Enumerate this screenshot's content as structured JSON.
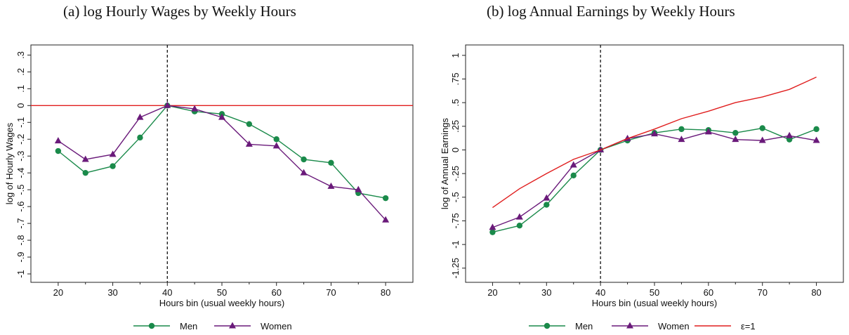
{
  "colors": {
    "men": "#1a8a4a",
    "women": "#6a1a7a",
    "elasticity": "#e01e1e",
    "reference_line": "#e01e1e"
  },
  "chart_data": [
    {
      "type": "line",
      "title": "(a) log Hourly Wages by Weekly Hours",
      "xlabel": "Hours bin (usual weekly hours)",
      "ylabel": "log of Hourly Wages",
      "xlim": [
        15,
        85
      ],
      "ylim": [
        -1.05,
        0.36
      ],
      "xticks": [
        20,
        30,
        40,
        50,
        60,
        70,
        80
      ],
      "xtick_labels": [
        "20",
        "30",
        "40",
        "50",
        "60",
        "70",
        "80"
      ],
      "xminor": [
        25,
        35,
        45,
        55,
        65,
        75
      ],
      "yticks": [
        -1,
        -0.9,
        -0.8,
        -0.7,
        -0.6,
        -0.5,
        -0.4,
        -0.3,
        -0.2,
        -0.1,
        0,
        0.1,
        0.2,
        0.3
      ],
      "ytick_labels": [
        "-1",
        "-.9",
        "-.8",
        "-.7",
        "-.6",
        "-.5",
        "-.4",
        "-.3",
        "-.2",
        "-.1",
        "0",
        ".1",
        ".2",
        ".3"
      ],
      "vline": 40,
      "hline": 0,
      "x": [
        20,
        25,
        30,
        35,
        40,
        45,
        50,
        55,
        60,
        65,
        70,
        75,
        80
      ],
      "series": [
        {
          "name": "Men",
          "marker": "circle",
          "values": [
            -0.27,
            -0.4,
            -0.36,
            -0.19,
            0,
            -0.035,
            -0.05,
            -0.11,
            -0.2,
            -0.32,
            -0.34,
            -0.52,
            -0.55
          ]
        },
        {
          "name": "Women",
          "marker": "triangle",
          "values": [
            -0.21,
            -0.32,
            -0.29,
            -0.07,
            0,
            -0.02,
            -0.07,
            -0.23,
            -0.24,
            -0.4,
            -0.48,
            -0.5,
            -0.68
          ]
        }
      ],
      "legend": {
        "position": "bottom",
        "entries": [
          "Men",
          "Women"
        ]
      },
      "grid": false
    },
    {
      "type": "line",
      "title": "(b) log Annual Earnings by Weekly Hours",
      "xlabel": "Hours bin (usual weekly hours)",
      "ylabel": "log of Annual Earnings",
      "xlim": [
        15,
        85
      ],
      "ylim": [
        -1.4,
        1.11
      ],
      "xticks": [
        20,
        30,
        40,
        50,
        60,
        70,
        80
      ],
      "xtick_labels": [
        "20",
        "30",
        "40",
        "50",
        "60",
        "70",
        "80"
      ],
      "xminor": [
        25,
        35,
        45,
        55,
        65,
        75
      ],
      "yticks": [
        -1.25,
        -1,
        -0.75,
        -0.5,
        -0.25,
        0,
        0.25,
        0.5,
        0.75,
        1
      ],
      "ytick_labels": [
        "-1.25",
        "-1",
        "-.75",
        "-.5",
        "-.25",
        "0",
        ".25",
        ".5",
        ".75",
        "1"
      ],
      "vline": 40,
      "x": [
        20,
        25,
        30,
        35,
        40,
        45,
        50,
        55,
        60,
        65,
        70,
        75,
        80
      ],
      "series": [
        {
          "name": "Men",
          "marker": "circle",
          "values": [
            -0.87,
            -0.8,
            -0.58,
            -0.27,
            0,
            0.1,
            0.18,
            0.22,
            0.21,
            0.18,
            0.23,
            0.11,
            0.22
          ]
        },
        {
          "name": "Women",
          "marker": "triangle",
          "values": [
            -0.82,
            -0.71,
            -0.51,
            -0.16,
            0,
            0.12,
            0.17,
            0.11,
            0.19,
            0.11,
            0.1,
            0.15,
            0.1
          ]
        },
        {
          "name": "ε=1",
          "marker": "none",
          "values": [
            -0.61,
            -0.41,
            -0.25,
            -0.1,
            0,
            0.12,
            0.22,
            0.33,
            0.41,
            0.5,
            0.56,
            0.64,
            0.77
          ]
        }
      ],
      "legend": {
        "position": "bottom",
        "entries": [
          "Men",
          "Women",
          "ε=1"
        ]
      },
      "grid": false
    }
  ]
}
